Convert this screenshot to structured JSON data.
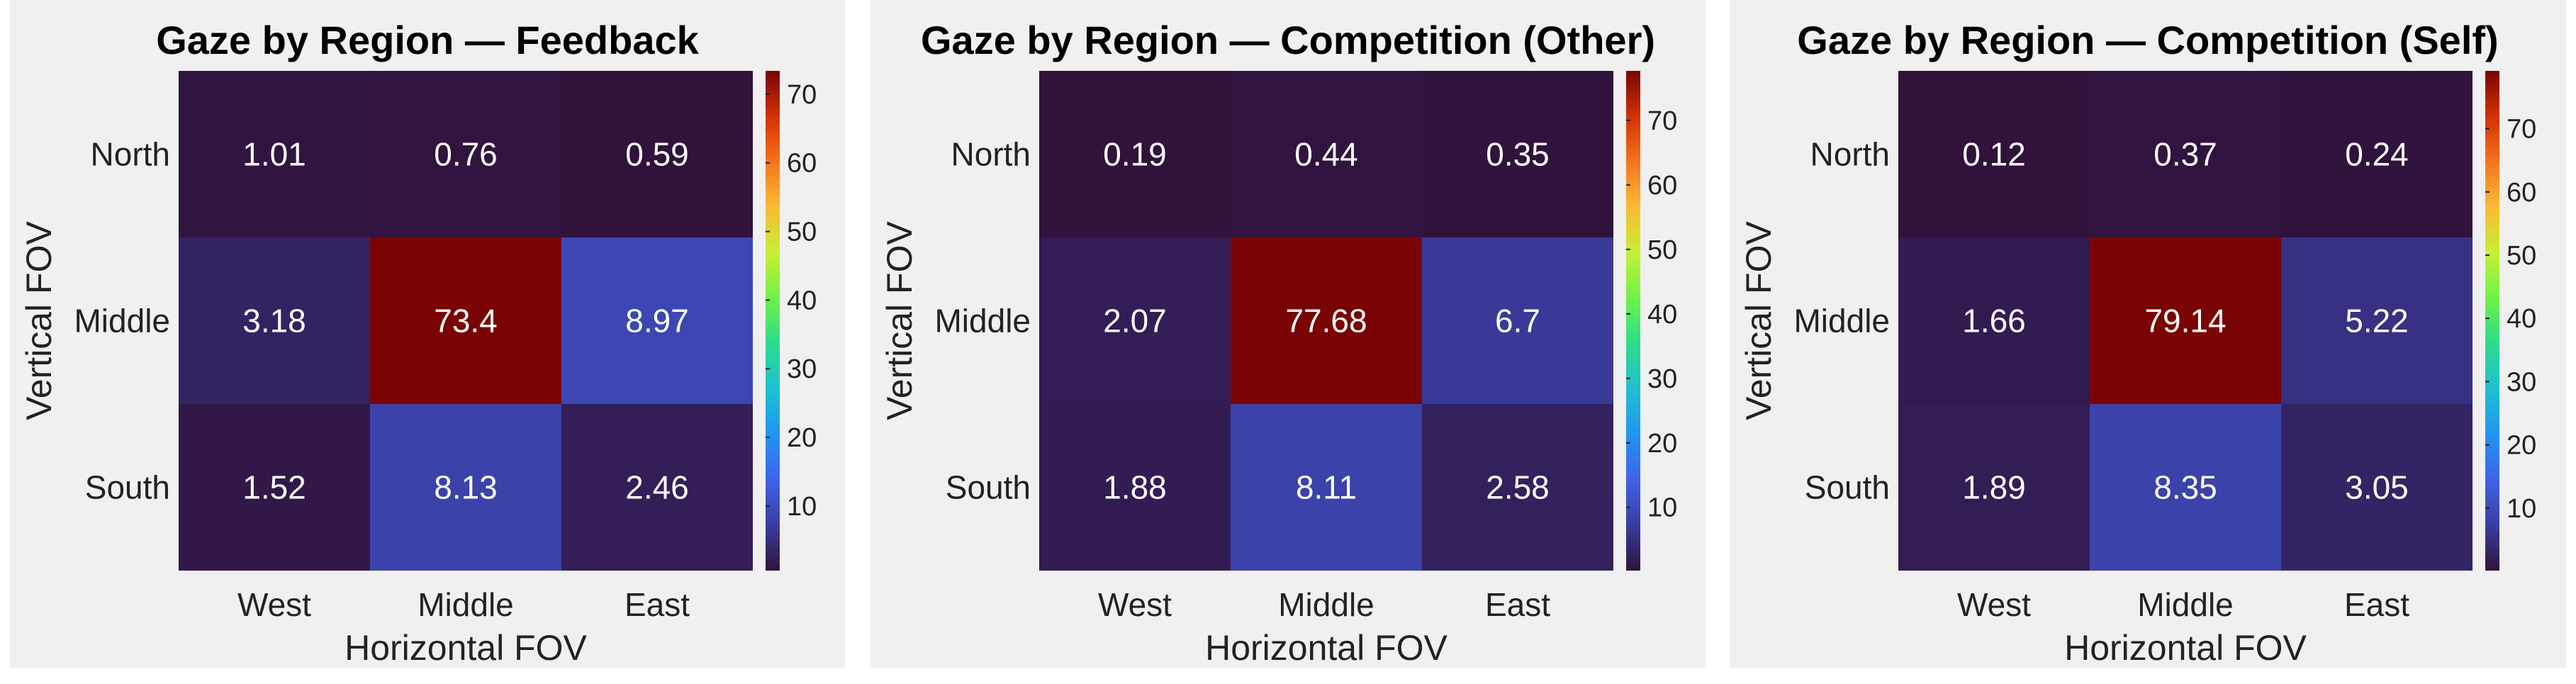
{
  "colors": {
    "panel_background": "#f0f0f0",
    "page_background": "#ffffff",
    "colormap": [
      "#30123b",
      "#3a3da0",
      "#4062e8",
      "#2195f2",
      "#1ec0d0",
      "#2ddc8c",
      "#6ef24a",
      "#c8ef34",
      "#f9bb33",
      "#f5741c",
      "#d23105",
      "#7a0403"
    ]
  },
  "chart_data": [
    {
      "type": "heatmap",
      "title": "Gaze by Region — Feedback",
      "xlabel": "Horizontal FOV",
      "ylabel": "Vertical FOV",
      "x_categories": [
        "West",
        "Middle",
        "East"
      ],
      "y_categories": [
        "North",
        "Middle",
        "South"
      ],
      "values": [
        [
          1.01,
          0.76,
          0.59
        ],
        [
          3.18,
          73.4,
          8.97
        ],
        [
          1.52,
          8.13,
          2.46
        ]
      ],
      "value_labels": [
        [
          "1.01",
          "0.76",
          "0.59"
        ],
        [
          "3.18",
          "73.4",
          "8.97"
        ],
        [
          "1.52",
          "8.13",
          "2.46"
        ]
      ],
      "colorbar_range": [
        0.59,
        73.4
      ],
      "colorbar_ticks": [
        10,
        20,
        30,
        40,
        50,
        60,
        70
      ]
    },
    {
      "type": "heatmap",
      "title": "Gaze by Region — Competition (Other)",
      "xlabel": "Horizontal FOV",
      "ylabel": "Vertical FOV",
      "x_categories": [
        "West",
        "Middle",
        "East"
      ],
      "y_categories": [
        "North",
        "Middle",
        "South"
      ],
      "values": [
        [
          0.19,
          0.44,
          0.35
        ],
        [
          2.07,
          77.68,
          6.7
        ],
        [
          1.88,
          8.11,
          2.58
        ]
      ],
      "value_labels": [
        [
          "0.19",
          "0.44",
          "0.35"
        ],
        [
          "2.07",
          "77.68",
          "6.7"
        ],
        [
          "1.88",
          "8.11",
          "2.58"
        ]
      ],
      "colorbar_range": [
        0.19,
        77.68
      ],
      "colorbar_ticks": [
        10,
        20,
        30,
        40,
        50,
        60,
        70
      ]
    },
    {
      "type": "heatmap",
      "title": "Gaze by Region — Competition (Self)",
      "xlabel": "Horizontal FOV",
      "ylabel": "Vertical FOV",
      "x_categories": [
        "West",
        "Middle",
        "East"
      ],
      "y_categories": [
        "North",
        "Middle",
        "South"
      ],
      "values": [
        [
          0.12,
          0.37,
          0.24
        ],
        [
          1.66,
          79.14,
          5.22
        ],
        [
          1.89,
          8.35,
          3.05
        ]
      ],
      "value_labels": [
        [
          "0.12",
          "0.37",
          "0.24"
        ],
        [
          "1.66",
          "79.14",
          "5.22"
        ],
        [
          "1.89",
          "8.35",
          "3.05"
        ]
      ],
      "colorbar_range": [
        0.12,
        79.14
      ],
      "colorbar_ticks": [
        10,
        20,
        30,
        40,
        50,
        60,
        70
      ]
    }
  ]
}
